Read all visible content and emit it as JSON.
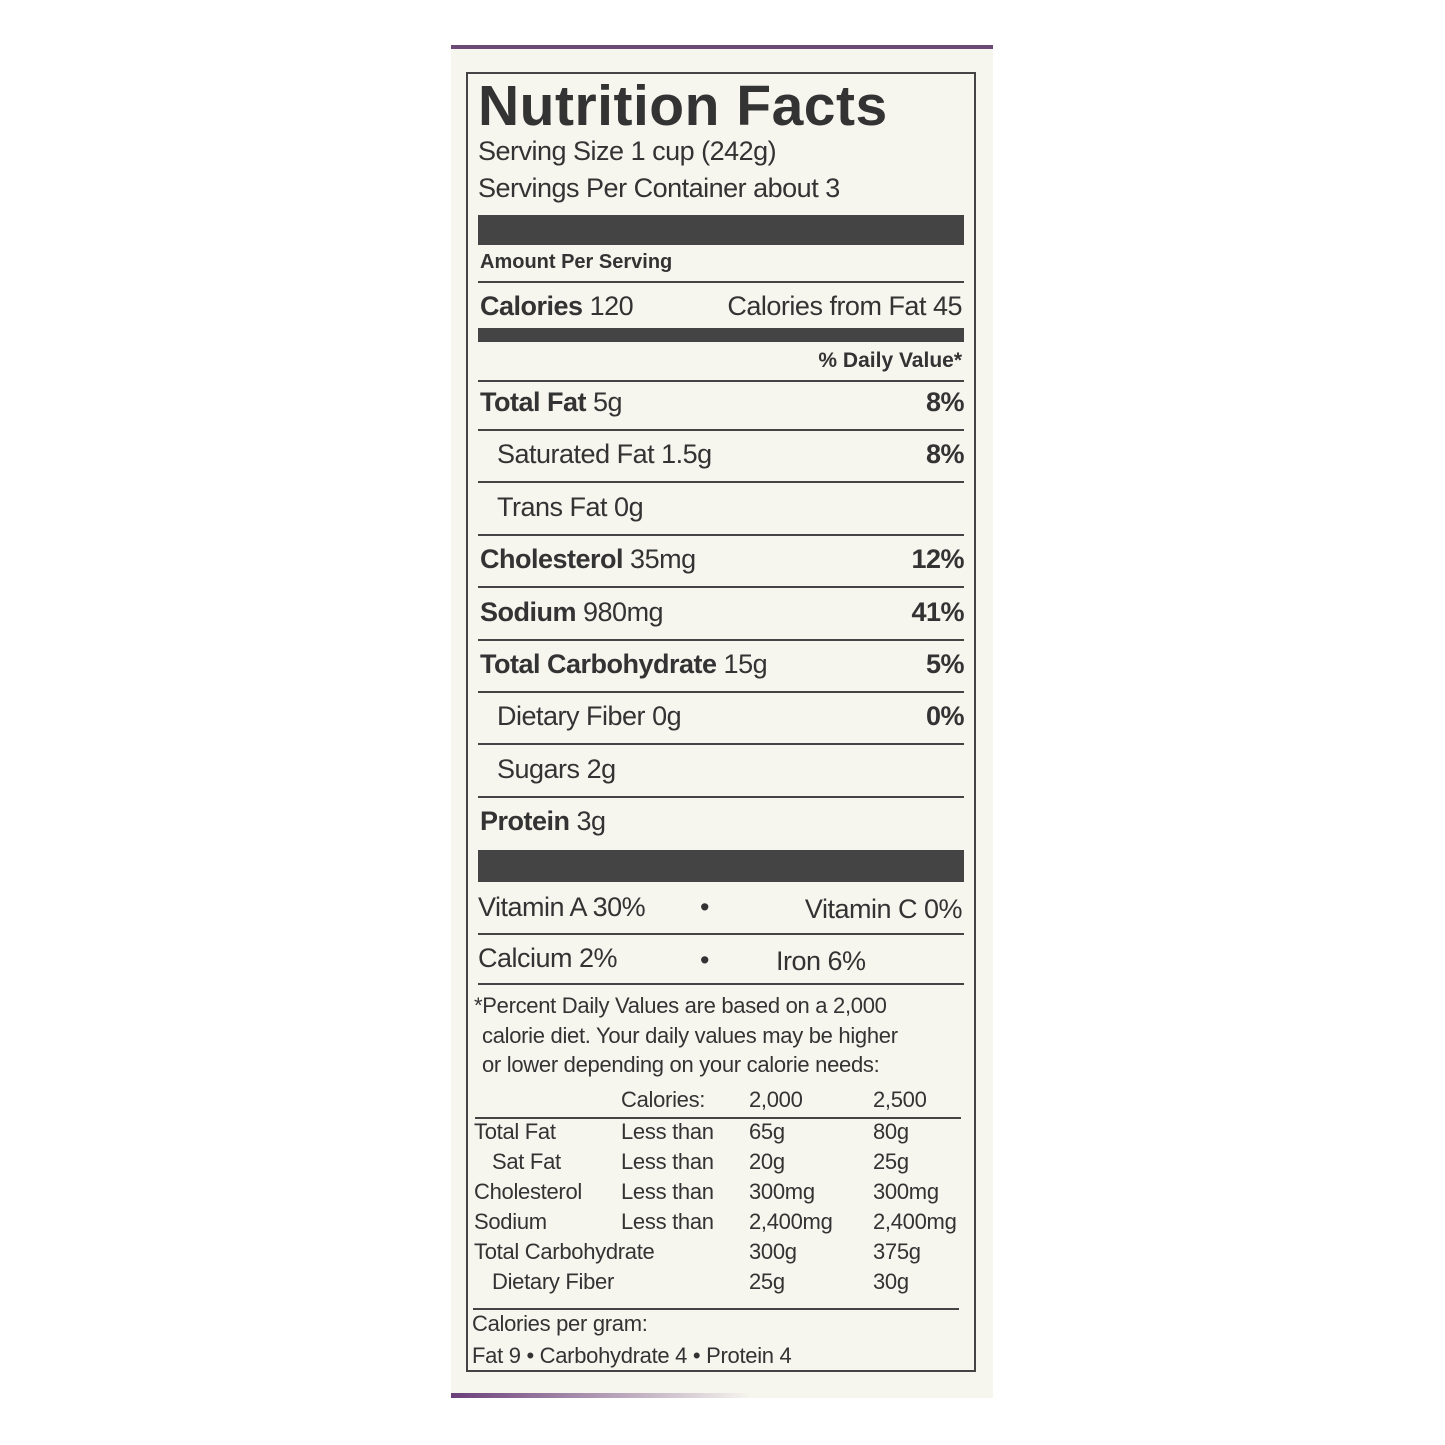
{
  "title": "Nutrition Facts",
  "serving_size": "Serving Size  1 cup (242g)",
  "servings_per_container": "Servings Per Container  about 3",
  "amount_per_serving": "Amount Per Serving",
  "calories": {
    "label": "Calories",
    "value": "120",
    "from_fat": "Calories from Fat 45"
  },
  "dv_header": "% Daily Value*",
  "nutrients": [
    {
      "label": "Total Fat",
      "amount": "5g",
      "dv": "8%"
    },
    {
      "label": "Saturated Fat",
      "amount": "1.5g",
      "dv": "8%"
    },
    {
      "label": "Trans Fat",
      "amount": "0g",
      "dv": ""
    },
    {
      "label": "Cholesterol",
      "amount": "35mg",
      "dv": "12%"
    },
    {
      "label": "Sodium",
      "amount": "980mg",
      "dv": "41%"
    },
    {
      "label": "Total Carbohydrate",
      "amount": "15g",
      "dv": "5%"
    },
    {
      "label": "Dietary Fiber",
      "amount": "0g",
      "dv": "0%"
    },
    {
      "label": "Sugars",
      "amount": "2g",
      "dv": ""
    },
    {
      "label": "Protein",
      "amount": "3g",
      "dv": ""
    }
  ],
  "vitamins": [
    [
      "Vitamin A 30%",
      "Vitamin C 0%"
    ],
    [
      "Calcium 2%",
      "Iron 6%"
    ]
  ],
  "bullet": "•",
  "footnote": [
    "*Percent Daily Values are based on a 2,000",
    "calorie diet. Your daily values may be higher",
    "or lower depending on your calorie needs:"
  ],
  "dv_table": {
    "header": [
      "",
      "Calories:",
      "2,000",
      "2,500"
    ],
    "rows": [
      [
        "Total Fat",
        "Less than",
        "65g",
        "80g"
      ],
      [
        "Sat Fat",
        "Less than",
        "20g",
        "25g"
      ],
      [
        "Cholesterol",
        "Less than",
        "300mg",
        "300mg"
      ],
      [
        "Sodium",
        "Less than",
        "2,400mg",
        "2,400mg"
      ],
      [
        "Total Carbohydrate",
        "",
        "300g",
        "375g"
      ],
      [
        "Dietary Fiber",
        "",
        "25g",
        "30g"
      ]
    ]
  },
  "calories_per_gram": "Calories per gram:",
  "calories_per_gram_values": "Fat 9  •  Carbohydrate 4  •  Protein 4",
  "colors": {
    "text": "#333333",
    "background": "#f6f5ee",
    "accent": "#6b4a78"
  }
}
